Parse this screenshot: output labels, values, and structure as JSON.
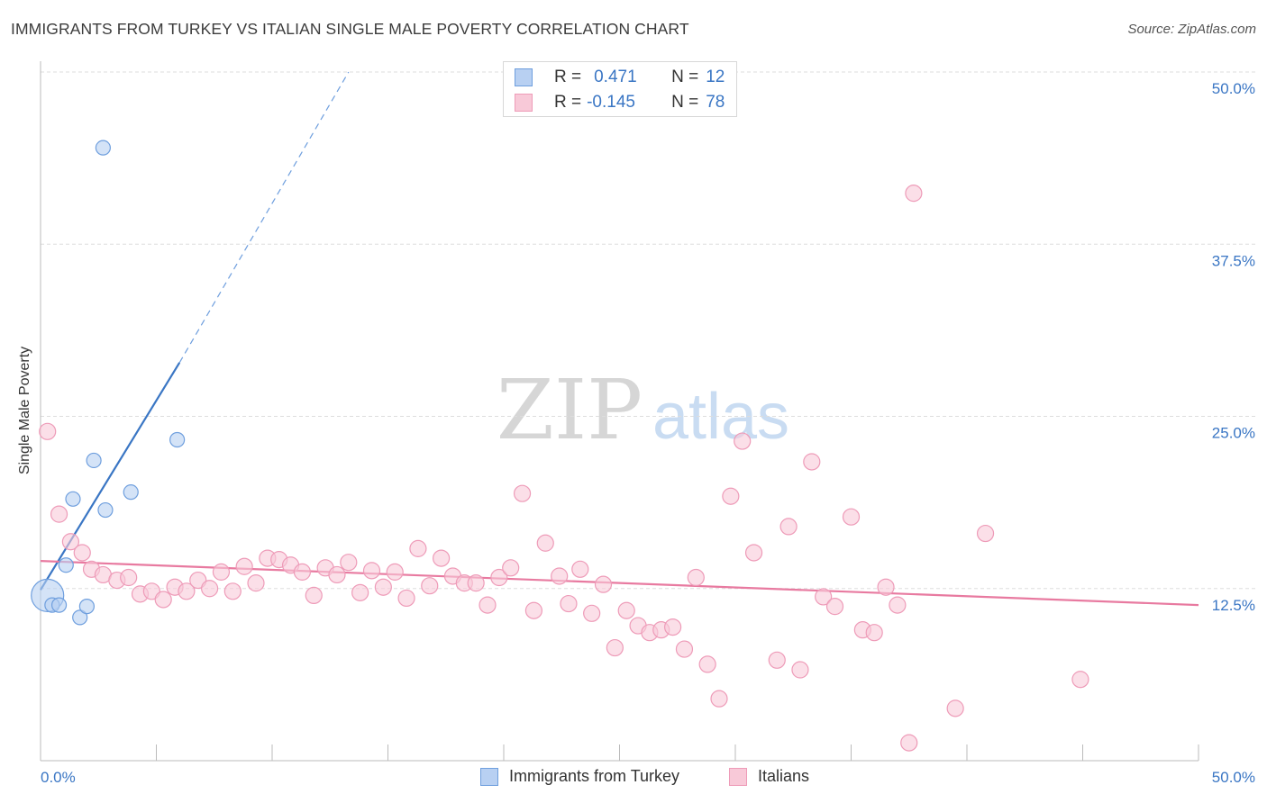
{
  "title": "IMMIGRANTS FROM TURKEY VS ITALIAN SINGLE MALE POVERTY CORRELATION CHART",
  "source": "Source: ZipAtlas.com",
  "watermark": {
    "zip": "ZIP",
    "atlas": "atlas"
  },
  "colors": {
    "blue": "#3a76c4",
    "blue_fill": "#b8d0f2",
    "blue_stroke": "#6f9fde",
    "pink": "#e87aa0",
    "pink_fill": "#f8c9d8",
    "pink_stroke": "#ee9bb8",
    "axis_text": "#3a76c4",
    "grid": "#dddddd"
  },
  "stats": {
    "row1": {
      "r_label": "R =",
      "r_value": "0.471",
      "n_label": "N =",
      "n_value": "12"
    },
    "row2": {
      "r_label": "R =",
      "r_value": "-0.145",
      "n_label": "N =",
      "n_value": "78"
    }
  },
  "legend": {
    "series1": "Immigrants from Turkey",
    "series2": "Italians"
  },
  "chart_data": {
    "type": "scatter",
    "ylabel": "Single Male Poverty",
    "xlabel": "",
    "xlim": [
      0,
      50
    ],
    "ylim": [
      0,
      50
    ],
    "x_tick_labels": [
      "0.0%",
      "50.0%"
    ],
    "y_ticks": [
      12.5,
      25.0,
      37.5,
      50.0
    ],
    "y_tick_labels": [
      "12.5%",
      "25.0%",
      "37.5%",
      "50.0%"
    ],
    "grid": "horizontal dashed",
    "series": [
      {
        "name": "Immigrants from Turkey",
        "color": "#3a76c4",
        "points": [
          {
            "x": 0.3,
            "y": 12.0,
            "big": true
          },
          {
            "x": 0.5,
            "y": 11.3
          },
          {
            "x": 0.8,
            "y": 11.3
          },
          {
            "x": 1.1,
            "y": 14.2
          },
          {
            "x": 1.4,
            "y": 19.0
          },
          {
            "x": 1.7,
            "y": 10.4
          },
          {
            "x": 2.0,
            "y": 11.2
          },
          {
            "x": 2.3,
            "y": 21.8
          },
          {
            "x": 2.8,
            "y": 18.2
          },
          {
            "x": 2.7,
            "y": 44.5
          },
          {
            "x": 3.9,
            "y": 19.5
          },
          {
            "x": 5.9,
            "y": 23.3
          }
        ],
        "trend": {
          "x1": 0,
          "y1": 12.4,
          "x2": 6.0,
          "y2": 28.9,
          "dash_x2": 13.3,
          "dash_y2": 50.0
        }
      },
      {
        "name": "Italians",
        "color": "#e87aa0",
        "points": [
          {
            "x": 0.3,
            "y": 23.9
          },
          {
            "x": 0.8,
            "y": 17.9
          },
          {
            "x": 1.3,
            "y": 15.9
          },
          {
            "x": 1.8,
            "y": 15.1
          },
          {
            "x": 2.2,
            "y": 13.9
          },
          {
            "x": 2.7,
            "y": 13.5
          },
          {
            "x": 3.3,
            "y": 13.1
          },
          {
            "x": 3.8,
            "y": 13.3
          },
          {
            "x": 4.3,
            "y": 12.1
          },
          {
            "x": 4.8,
            "y": 12.3
          },
          {
            "x": 5.3,
            "y": 11.7
          },
          {
            "x": 5.8,
            "y": 12.6
          },
          {
            "x": 6.3,
            "y": 12.3
          },
          {
            "x": 6.8,
            "y": 13.1
          },
          {
            "x": 7.3,
            "y": 12.5
          },
          {
            "x": 7.8,
            "y": 13.7
          },
          {
            "x": 8.3,
            "y": 12.3
          },
          {
            "x": 8.8,
            "y": 14.1
          },
          {
            "x": 9.3,
            "y": 12.9
          },
          {
            "x": 9.8,
            "y": 14.7
          },
          {
            "x": 10.3,
            "y": 14.6
          },
          {
            "x": 10.8,
            "y": 14.2
          },
          {
            "x": 11.3,
            "y": 13.7
          },
          {
            "x": 11.8,
            "y": 12.0
          },
          {
            "x": 12.3,
            "y": 14.0
          },
          {
            "x": 12.8,
            "y": 13.5
          },
          {
            "x": 13.3,
            "y": 14.4
          },
          {
            "x": 13.8,
            "y": 12.2
          },
          {
            "x": 14.3,
            "y": 13.8
          },
          {
            "x": 14.8,
            "y": 12.6
          },
          {
            "x": 15.3,
            "y": 13.7
          },
          {
            "x": 15.8,
            "y": 11.8
          },
          {
            "x": 16.3,
            "y": 15.4
          },
          {
            "x": 16.8,
            "y": 12.7
          },
          {
            "x": 17.3,
            "y": 14.7
          },
          {
            "x": 17.8,
            "y": 13.4
          },
          {
            "x": 18.3,
            "y": 12.9
          },
          {
            "x": 18.8,
            "y": 12.9
          },
          {
            "x": 19.3,
            "y": 11.3
          },
          {
            "x": 19.8,
            "y": 13.3
          },
          {
            "x": 20.3,
            "y": 14.0
          },
          {
            "x": 20.8,
            "y": 19.4
          },
          {
            "x": 21.3,
            "y": 10.9
          },
          {
            "x": 21.8,
            "y": 15.8
          },
          {
            "x": 22.4,
            "y": 13.4
          },
          {
            "x": 22.8,
            "y": 11.4
          },
          {
            "x": 23.3,
            "y": 13.9
          },
          {
            "x": 23.8,
            "y": 10.7
          },
          {
            "x": 24.3,
            "y": 12.8
          },
          {
            "x": 24.8,
            "y": 8.2
          },
          {
            "x": 25.3,
            "y": 10.9
          },
          {
            "x": 25.8,
            "y": 9.8
          },
          {
            "x": 26.3,
            "y": 9.3
          },
          {
            "x": 26.8,
            "y": 9.5
          },
          {
            "x": 27.3,
            "y": 9.7
          },
          {
            "x": 27.8,
            "y": 8.1
          },
          {
            "x": 28.3,
            "y": 13.3
          },
          {
            "x": 28.8,
            "y": 7.0
          },
          {
            "x": 29.3,
            "y": 4.5
          },
          {
            "x": 29.8,
            "y": 19.2
          },
          {
            "x": 30.3,
            "y": 23.2
          },
          {
            "x": 30.8,
            "y": 15.1
          },
          {
            "x": 31.8,
            "y": 7.3
          },
          {
            "x": 32.3,
            "y": 17.0
          },
          {
            "x": 32.8,
            "y": 6.6
          },
          {
            "x": 33.3,
            "y": 21.7
          },
          {
            "x": 33.8,
            "y": 11.9
          },
          {
            "x": 34.3,
            "y": 11.2
          },
          {
            "x": 35.0,
            "y": 17.7
          },
          {
            "x": 35.5,
            "y": 9.5
          },
          {
            "x": 36.0,
            "y": 9.3
          },
          {
            "x": 36.5,
            "y": 12.6
          },
          {
            "x": 37.0,
            "y": 11.3
          },
          {
            "x": 37.5,
            "y": 1.3
          },
          {
            "x": 37.7,
            "y": 41.2
          },
          {
            "x": 39.5,
            "y": 3.8
          },
          {
            "x": 40.8,
            "y": 16.5
          },
          {
            "x": 44.9,
            "y": 5.9
          }
        ],
        "trend": {
          "x1": 0,
          "y1": 14.5,
          "x2": 50,
          "y2": 11.3
        }
      }
    ]
  }
}
